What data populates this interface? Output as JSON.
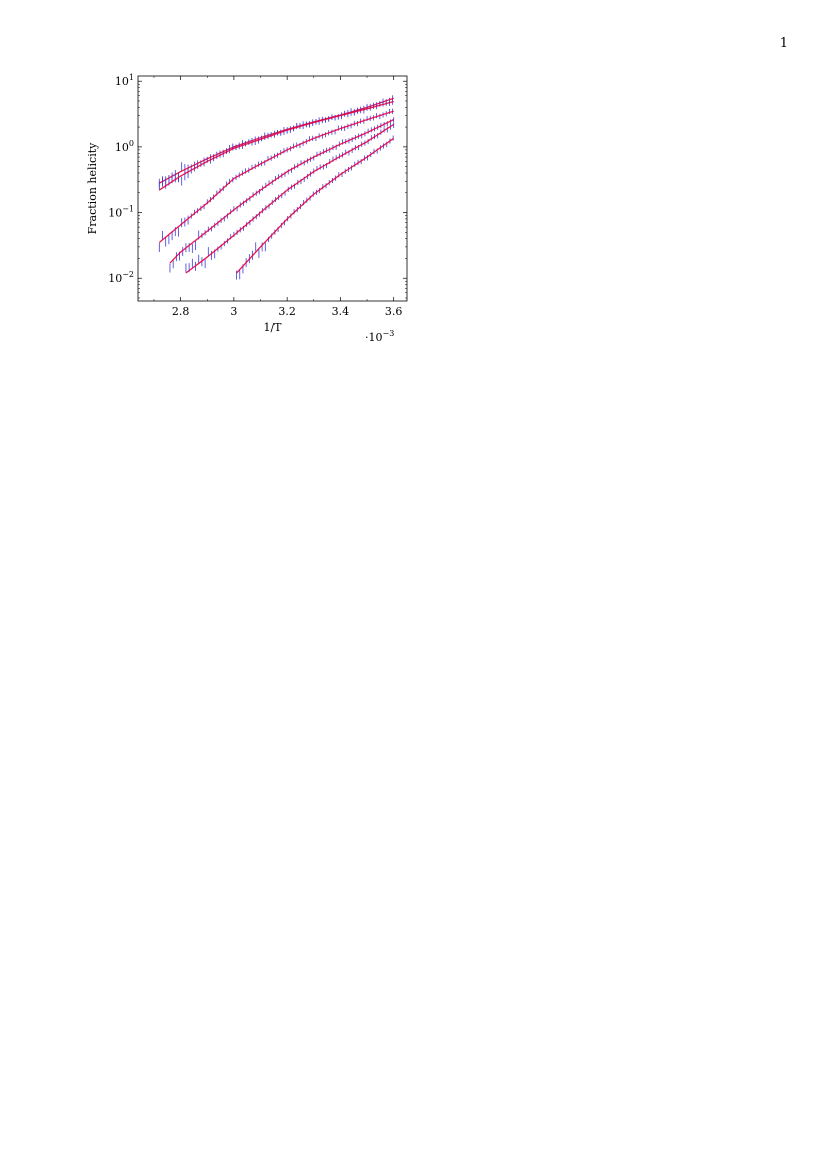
{
  "page": {
    "number": "1"
  },
  "chart_data": {
    "type": "line",
    "title": "",
    "xlabel": "1/T",
    "ylabel": "Fraction helicity",
    "x_multiplier_label": "·10",
    "x_multiplier_exponent": "−3",
    "x_scale": 0.001,
    "xlim": [
      2.64,
      3.65
    ],
    "ylim": [
      0.0045,
      12
    ],
    "y_scale": "log",
    "x_ticks": [
      {
        "value": 2.8,
        "label": "2.8"
      },
      {
        "value": 3.0,
        "label": "3"
      },
      {
        "value": 3.2,
        "label": "3.2"
      },
      {
        "value": 3.4,
        "label": "3.4"
      },
      {
        "value": 3.6,
        "label": "3.6"
      }
    ],
    "y_ticks": [
      {
        "value": 0.01,
        "base": "10",
        "exp": "−2"
      },
      {
        "value": 0.1,
        "base": "10",
        "exp": "−1"
      },
      {
        "value": 1,
        "base": "10",
        "exp": "0"
      },
      {
        "value": 10,
        "base": "10",
        "exp": "1"
      }
    ],
    "grid": false,
    "legend": "none",
    "colors": {
      "fit": "#e8003d",
      "data": "#3b3bd6",
      "axis": "#000000"
    },
    "series": [
      {
        "x": [
          2.72,
          2.8,
          2.9,
          3.0,
          3.1,
          3.2,
          3.3,
          3.4,
          3.5,
          3.6
        ],
        "values": [
          0.28,
          0.42,
          0.66,
          1.0,
          1.38,
          1.85,
          2.4,
          3.05,
          4.0,
          5.5
        ]
      },
      {
        "x": [
          2.72,
          2.8,
          2.9,
          3.0,
          3.1,
          3.2,
          3.3,
          3.4,
          3.5,
          3.6
        ],
        "values": [
          0.22,
          0.36,
          0.6,
          0.95,
          1.3,
          1.8,
          2.35,
          3.0,
          3.8,
          4.9
        ]
      },
      {
        "x": [
          2.72,
          2.8,
          2.9,
          3.0,
          3.1,
          3.2,
          3.3,
          3.4,
          3.5,
          3.6
        ],
        "values": [
          0.035,
          0.065,
          0.14,
          0.33,
          0.55,
          0.9,
          1.35,
          1.9,
          2.6,
          3.5
        ]
      },
      {
        "x": [
          2.76,
          2.8,
          2.9,
          3.0,
          3.1,
          3.2,
          3.3,
          3.4,
          3.5,
          3.6
        ],
        "values": [
          0.017,
          0.025,
          0.052,
          0.11,
          0.22,
          0.42,
          0.7,
          1.1,
          1.65,
          2.6
        ]
      },
      {
        "x": [
          2.82,
          2.9,
          3.0,
          3.1,
          3.2,
          3.3,
          3.4,
          3.5,
          3.6
        ],
        "values": [
          0.012,
          0.021,
          0.045,
          0.1,
          0.22,
          0.42,
          0.72,
          1.2,
          2.2
        ]
      },
      {
        "x": [
          3.01,
          3.1,
          3.2,
          3.3,
          3.4,
          3.5,
          3.6
        ],
        "values": [
          0.012,
          0.03,
          0.08,
          0.19,
          0.38,
          0.7,
          1.35
        ]
      }
    ]
  }
}
